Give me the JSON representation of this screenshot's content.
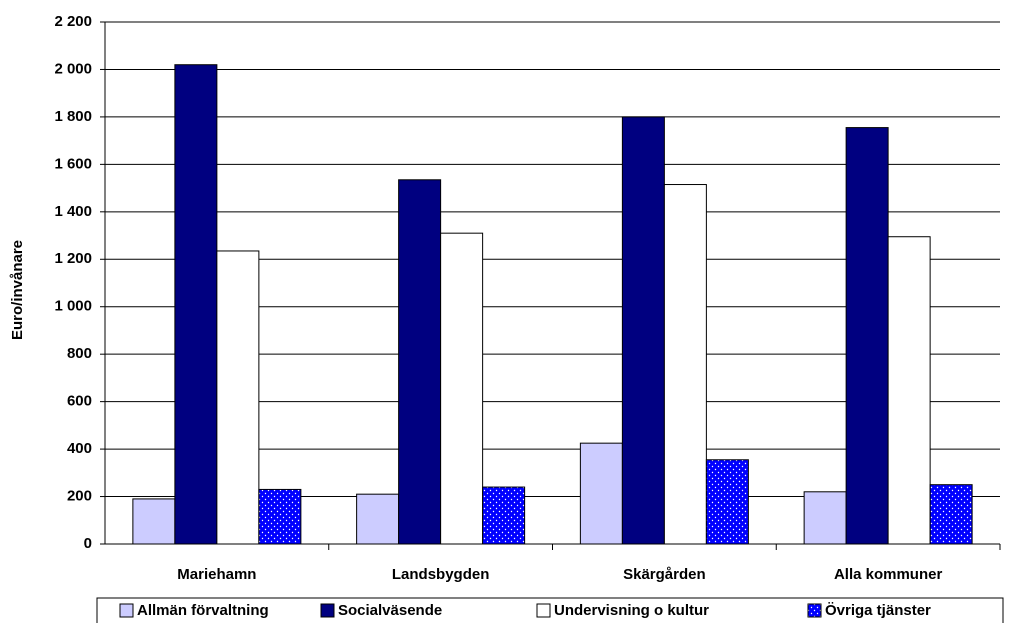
{
  "chart_data": {
    "type": "bar",
    "y_label": "Euro/invånare",
    "categories": [
      "Mariehamn",
      "Landsbygden",
      "Skärgården",
      "Alla kommuner"
    ],
    "series": [
      {
        "name": "Allmän förvaltning",
        "color": "#ccccff",
        "values": [
          190,
          210,
          425,
          220
        ]
      },
      {
        "name": "Socialväsende",
        "color": "#000080",
        "values": [
          2020,
          1535,
          1800,
          1755
        ]
      },
      {
        "name": "Undervisning o kultur",
        "color": "#ffffff",
        "values": [
          1235,
          1310,
          1515,
          1295
        ]
      },
      {
        "name": "Övriga tjänster",
        "color": "#0000ff",
        "pattern": "dots",
        "values": [
          230,
          240,
          355,
          250
        ]
      }
    ],
    "ylim": [
      0,
      2200
    ],
    "yticks": [
      0,
      200,
      400,
      600,
      800,
      {
        "value": 1000,
        "label": "1 000"
      },
      {
        "value": 1200,
        "label": "1 200"
      },
      {
        "value": 1400,
        "label": "1 400"
      },
      {
        "value": 1600,
        "label": "1 600"
      },
      {
        "value": 1800,
        "label": "1 800"
      },
      {
        "value": 2000,
        "label": "2 000"
      },
      {
        "value": 2200,
        "label": "2 200"
      }
    ],
    "grid": true,
    "legend": "bottom"
  }
}
